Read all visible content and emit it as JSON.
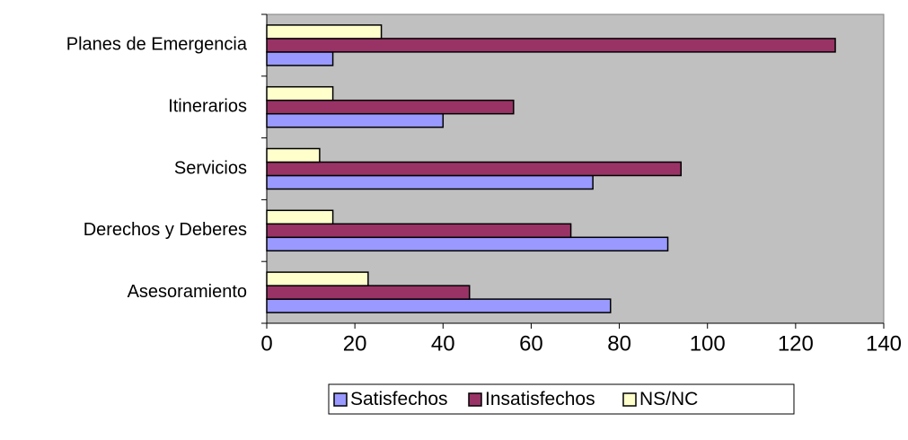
{
  "chart_data": {
    "type": "hbar",
    "categories": [
      "Asesoramiento",
      "Derechos y Deberes",
      "Servicios",
      "Itinerarios",
      "Planes de Emergencia"
    ],
    "series": [
      {
        "name": "Satisfechos",
        "color": "#9999ff",
        "values": [
          78,
          91,
          74,
          40,
          15
        ]
      },
      {
        "name": "Insatisfechos",
        "color": "#993366",
        "values": [
          46,
          69,
          94,
          56,
          129
        ]
      },
      {
        "name": "NS/NC",
        "color": "#ffffcc",
        "values": [
          23,
          15,
          12,
          15,
          26
        ]
      }
    ],
    "xlim": [
      0,
      140
    ],
    "xticks": [
      0,
      20,
      40,
      60,
      80,
      100,
      120,
      140
    ],
    "legend": "bottom",
    "plot_background": "#c0c0c0"
  }
}
